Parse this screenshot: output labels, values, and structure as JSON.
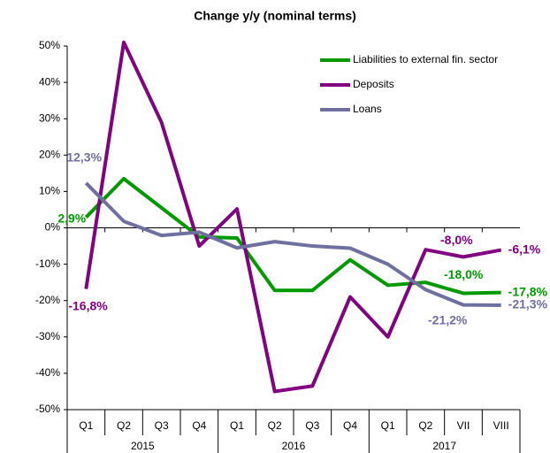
{
  "chart_data": {
    "type": "line",
    "title": "Change y/y (nominal terms)",
    "categories": [
      "Q1",
      "Q2",
      "Q3",
      "Q4",
      "Q1",
      "Q2",
      "Q3",
      "Q4",
      "Q1",
      "Q2",
      "VII",
      "VIII"
    ],
    "groups": [
      {
        "label": "2015",
        "span": 4
      },
      {
        "label": "2016",
        "span": 4
      },
      {
        "label": "2017",
        "span": 4
      }
    ],
    "ylim": [
      -50,
      50
    ],
    "yticks": [
      {
        "value": -50,
        "label": "-50%"
      },
      {
        "value": -40,
        "label": "-40%"
      },
      {
        "value": -30,
        "label": "-30%"
      },
      {
        "value": -20,
        "label": "-20%"
      },
      {
        "value": -10,
        "label": "-10%"
      },
      {
        "value": 0,
        "label": "0%"
      },
      {
        "value": 10,
        "label": "10%"
      },
      {
        "value": 20,
        "label": "20%"
      },
      {
        "value": 30,
        "label": "30%"
      },
      {
        "value": 40,
        "label": "40%"
      },
      {
        "value": 50,
        "label": "50%"
      }
    ],
    "grid": false,
    "legend": "upper right",
    "series": [
      {
        "name": "Liabilities to external fin. sector",
        "color": "#009900",
        "values": [
          2.9,
          13.5,
          5.5,
          -2.5,
          -2.8,
          -17.2,
          -17.2,
          -8.8,
          -15.8,
          -15.0,
          -18.0,
          -17.8
        ],
        "value_labels": [
          "2,9%",
          null,
          null,
          null,
          null,
          null,
          null,
          null,
          null,
          null,
          "-18,0%",
          "-17,8%"
        ]
      },
      {
        "name": "Deposits",
        "color": "#800080",
        "values": [
          -16.8,
          51.0,
          29.0,
          -5.0,
          5.2,
          -45.0,
          -43.5,
          -19.0,
          -30.0,
          -6.0,
          -8.0,
          -6.1
        ],
        "value_labels": [
          "-16,8%",
          null,
          null,
          null,
          null,
          null,
          null,
          null,
          null,
          null,
          "-8,0%",
          "-6,1%"
        ]
      },
      {
        "name": "Loans",
        "color": "#6f6fa0",
        "values": [
          12.3,
          1.8,
          -2.1,
          -1.2,
          -5.5,
          -3.8,
          -5.0,
          -5.6,
          -10.0,
          -17.0,
          -21.2,
          -21.3
        ],
        "value_labels": [
          "12,3%",
          null,
          null,
          null,
          null,
          null,
          null,
          null,
          null,
          null,
          "-21,2%",
          "-21,3%"
        ]
      }
    ]
  }
}
